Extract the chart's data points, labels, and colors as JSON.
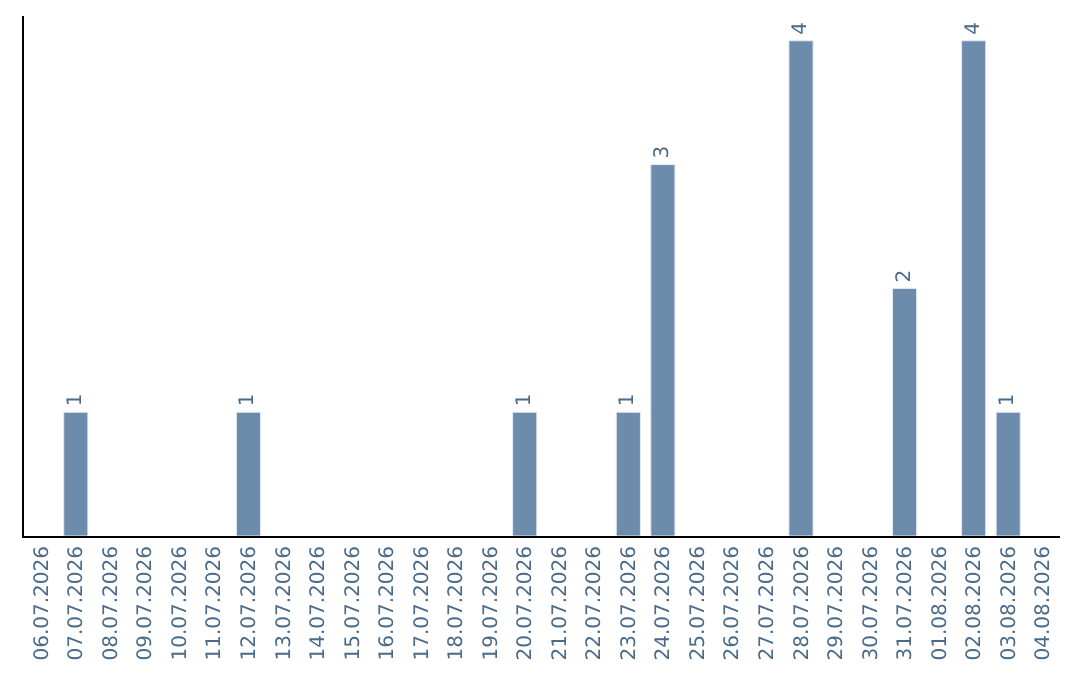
{
  "chart_data": {
    "type": "bar",
    "categories": [
      "06.07.2026",
      "07.07.2026",
      "08.07.2026",
      "09.07.2026",
      "10.07.2026",
      "11.07.2026",
      "12.07.2026",
      "13.07.2026",
      "14.07.2026",
      "15.07.2026",
      "16.07.2026",
      "17.07.2026",
      "18.07.2026",
      "19.07.2026",
      "20.07.2026",
      "21.07.2026",
      "22.07.2026",
      "23.07.2026",
      "24.07.2026",
      "25.07.2026",
      "26.07.2026",
      "27.07.2026",
      "28.07.2026",
      "29.07.2026",
      "30.07.2026",
      "31.07.2026",
      "01.08.2026",
      "02.08.2026",
      "03.08.2026",
      "04.08.2026"
    ],
    "values": [
      null,
      1,
      null,
      null,
      null,
      null,
      1,
      null,
      null,
      null,
      null,
      null,
      null,
      null,
      1,
      null,
      null,
      1,
      3,
      null,
      null,
      null,
      4,
      null,
      null,
      2,
      null,
      4,
      1,
      null
    ],
    "color": "#6d8cab",
    "ylim": [
      0,
      4.2
    ],
    "data_labels": true
  }
}
